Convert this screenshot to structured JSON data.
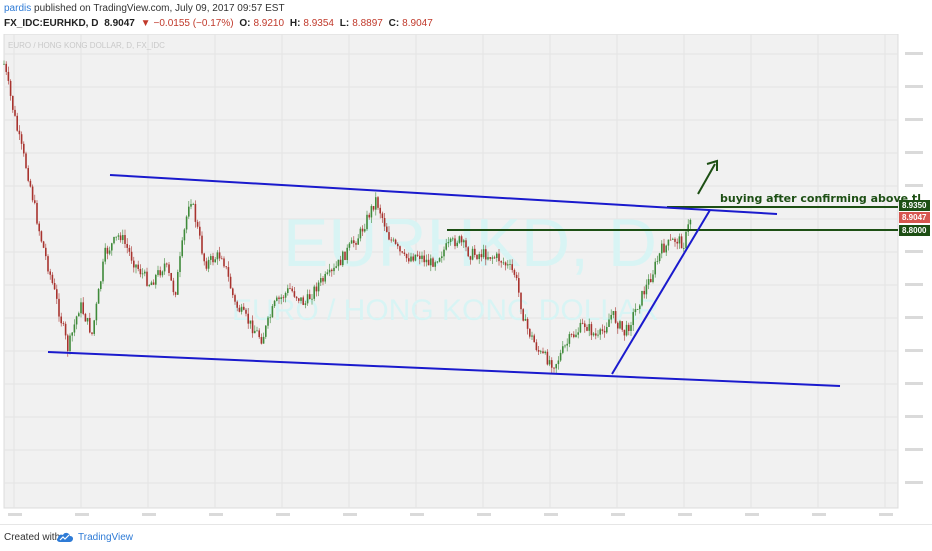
{
  "header": {
    "username": "pardis",
    "published_text": " published on TradingView.com, July 09, 2017 09:57 EST",
    "symbol": "FX_IDC:EURHKD, D",
    "last": "8.9047",
    "change": "−0.0155 (−0.17%)",
    "open_label": "O:",
    "open": "8.9210",
    "high_label": "H:",
    "high": "8.9354",
    "low_label": "L:",
    "low": "8.8897",
    "close_label": "C:",
    "close": "8.9047"
  },
  "chart": {
    "legend": "EURO / HONG KONG DOLLAR, D, FX_IDC",
    "watermark_symbol": "EURHKD, D",
    "watermark_name": "EURO / HONG KONG DOLLAR",
    "annotation": "buying after confirming above tl",
    "price_tags": [
      {
        "text": "8.9350",
        "color": "#1d4f14"
      },
      {
        "text": "8.9047",
        "color": "#d6564f"
      },
      {
        "text": "8.8000",
        "color": "#1d4f14"
      }
    ],
    "colors": {
      "trendline": "#1a1acd",
      "level": "#1d4f14",
      "bull": "#3f8a3a",
      "bear": "#a8332e",
      "background": "#f1f1f1"
    }
  },
  "footer": {
    "created_with": "Created with",
    "brand": "TradingView",
    "logo_icon": "tradingview-cloud-icon"
  }
}
